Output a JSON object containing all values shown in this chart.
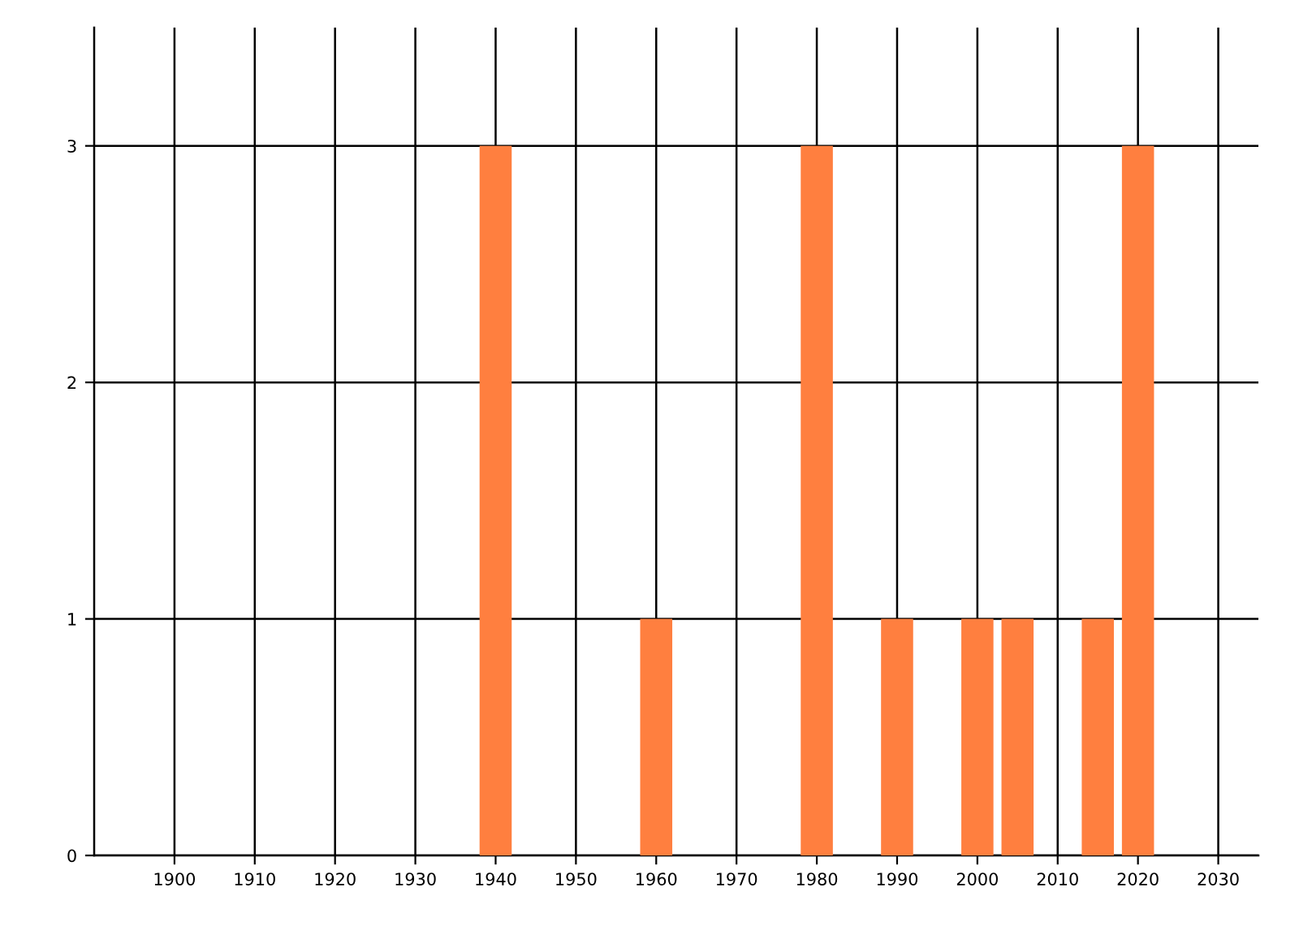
{
  "chart_data": {
    "type": "bar",
    "x": [
      1940,
      1960,
      1980,
      1990,
      2000,
      2005,
      2015,
      2020
    ],
    "values": [
      3,
      1,
      3,
      1,
      1,
      1,
      1,
      3
    ],
    "color": "#ff7f3f",
    "xlim": [
      1890,
      2035
    ],
    "xticks": [
      1900,
      1910,
      1920,
      1930,
      1940,
      1950,
      1960,
      1970,
      1980,
      1990,
      2000,
      2010,
      2020,
      2030
    ],
    "ylim": [
      0,
      3.5
    ],
    "yticks": [
      0,
      1,
      2,
      3
    ],
    "grid": true
  }
}
